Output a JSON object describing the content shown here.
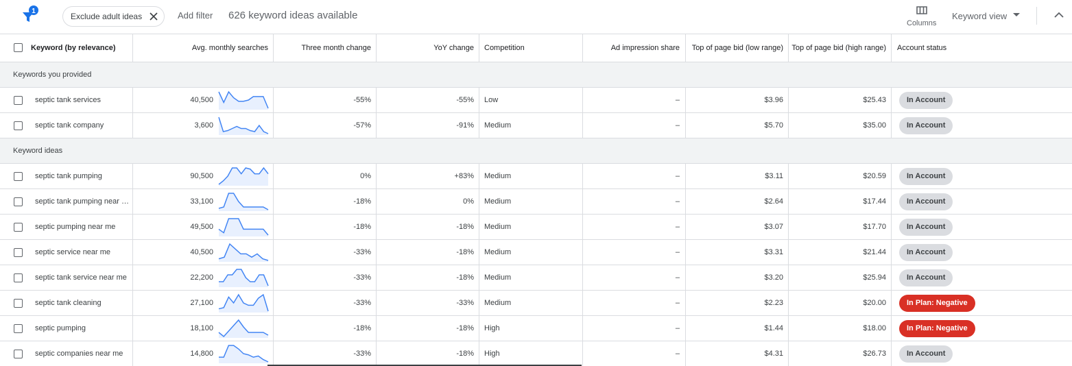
{
  "toolbar": {
    "filter_badge": 1,
    "chip": "Exclude adult ideas",
    "add_filter": "Add filter",
    "summary": "626 keyword ideas available",
    "columns": "Columns",
    "view": "Keyword view"
  },
  "table": {
    "columns": [
      "Keyword (by relevance)",
      "Avg. monthly searches",
      "Three month change",
      "YoY change",
      "Competition",
      "Ad impression share",
      "Top of page bid (low range)",
      "Top of page bid (high range)",
      "Account status"
    ],
    "groups": [
      {
        "label": "Keywords you provided",
        "rows": [
          {
            "keyword": "septic tank services",
            "searches": "40,500",
            "trend": [
              90,
              45,
              90,
              65,
              50,
              50,
              55,
              70,
              70,
              70,
              20
            ],
            "three_month": "-55%",
            "yoy": "-55%",
            "competition": "Low",
            "ad_share": "–",
            "low_bid": "$3.96",
            "high_bid": "$25.43",
            "status": "In Account",
            "status_color": "#dadce0"
          },
          {
            "keyword": "septic tank company",
            "searches": "3,600",
            "trend": [
              95,
              25,
              30,
              40,
              50,
              40,
              40,
              30,
              25,
              55,
              25,
              15
            ],
            "three_month": "-57%",
            "yoy": "-91%",
            "competition": "Medium",
            "ad_share": "–",
            "low_bid": "$5.70",
            "high_bid": "$35.00",
            "status": "In Account",
            "status_color": "#dadce0"
          }
        ]
      },
      {
        "label": "Keyword ideas",
        "rows": [
          {
            "keyword": "septic tank pumping",
            "searches": "90,500",
            "trend": [
              15,
              30,
              50,
              85,
              85,
              60,
              85,
              80,
              60,
              60,
              85,
              60
            ],
            "three_month": "0%",
            "yoy": "+83%",
            "competition": "Medium",
            "ad_share": "–",
            "low_bid": "$3.11",
            "high_bid": "$20.59",
            "status": "In Account",
            "status_color": "#dadce0"
          },
          {
            "keyword": "septic tank pumping near …",
            "searches": "33,100",
            "trend": [
              30,
              35,
              85,
              85,
              55,
              35,
              35,
              35,
              35,
              35,
              25
            ],
            "three_month": "-18%",
            "yoy": "0%",
            "competition": "Medium",
            "ad_share": "–",
            "low_bid": "$2.64",
            "high_bid": "$17.44",
            "status": "In Account",
            "status_color": "#dadce0"
          },
          {
            "keyword": "septic pumping near me",
            "searches": "49,500",
            "trend": [
              40,
              25,
              85,
              85,
              85,
              40,
              40,
              40,
              40,
              40,
              15
            ],
            "three_month": "-18%",
            "yoy": "-18%",
            "competition": "Medium",
            "ad_share": "–",
            "low_bid": "$3.07",
            "high_bid": "$17.70",
            "status": "In Account",
            "status_color": "#dadce0"
          },
          {
            "keyword": "septic service near me",
            "searches": "40,500",
            "trend": [
              35,
              40,
              80,
              65,
              50,
              50,
              40,
              50,
              35,
              30
            ],
            "three_month": "-33%",
            "yoy": "-18%",
            "competition": "Medium",
            "ad_share": "–",
            "low_bid": "$3.31",
            "high_bid": "$21.44",
            "status": "In Account",
            "status_color": "#dadce0"
          },
          {
            "keyword": "septic tank service near me",
            "searches": "22,200",
            "trend": [
              40,
              40,
              65,
              65,
              85,
              85,
              55,
              40,
              40,
              65,
              65,
              25
            ],
            "three_month": "-33%",
            "yoy": "-18%",
            "competition": "Medium",
            "ad_share": "–",
            "low_bid": "$3.20",
            "high_bid": "$25.94",
            "status": "In Account",
            "status_color": "#dadce0"
          },
          {
            "keyword": "septic tank cleaning",
            "searches": "27,100",
            "trend": [
              25,
              30,
              75,
              50,
              85,
              50,
              40,
              40,
              70,
              85,
              15
            ],
            "three_month": "-33%",
            "yoy": "-33%",
            "competition": "Medium",
            "ad_share": "–",
            "low_bid": "$2.23",
            "high_bid": "$20.00",
            "status": "In Plan: Negative",
            "status_color": "#d93025"
          },
          {
            "keyword": "septic pumping",
            "searches": "18,100",
            "trend": [
              40,
              25,
              45,
              65,
              85,
              60,
              40,
              40,
              40,
              40,
              30
            ],
            "three_month": "-18%",
            "yoy": "-18%",
            "competition": "High",
            "ad_share": "–",
            "low_bid": "$1.44",
            "high_bid": "$18.00",
            "status": "In Plan: Negative",
            "status_color": "#d93025"
          },
          {
            "keyword": "septic companies near me",
            "searches": "14,800",
            "trend": [
              35,
              35,
              85,
              85,
              70,
              50,
              45,
              35,
              40,
              25,
              15
            ],
            "three_month": "-33%",
            "yoy": "-18%",
            "competition": "High",
            "ad_share": "–",
            "low_bid": "$4.31",
            "high_bid": "$26.73",
            "status": "In Account",
            "status_color": "#dadce0"
          }
        ]
      }
    ]
  }
}
